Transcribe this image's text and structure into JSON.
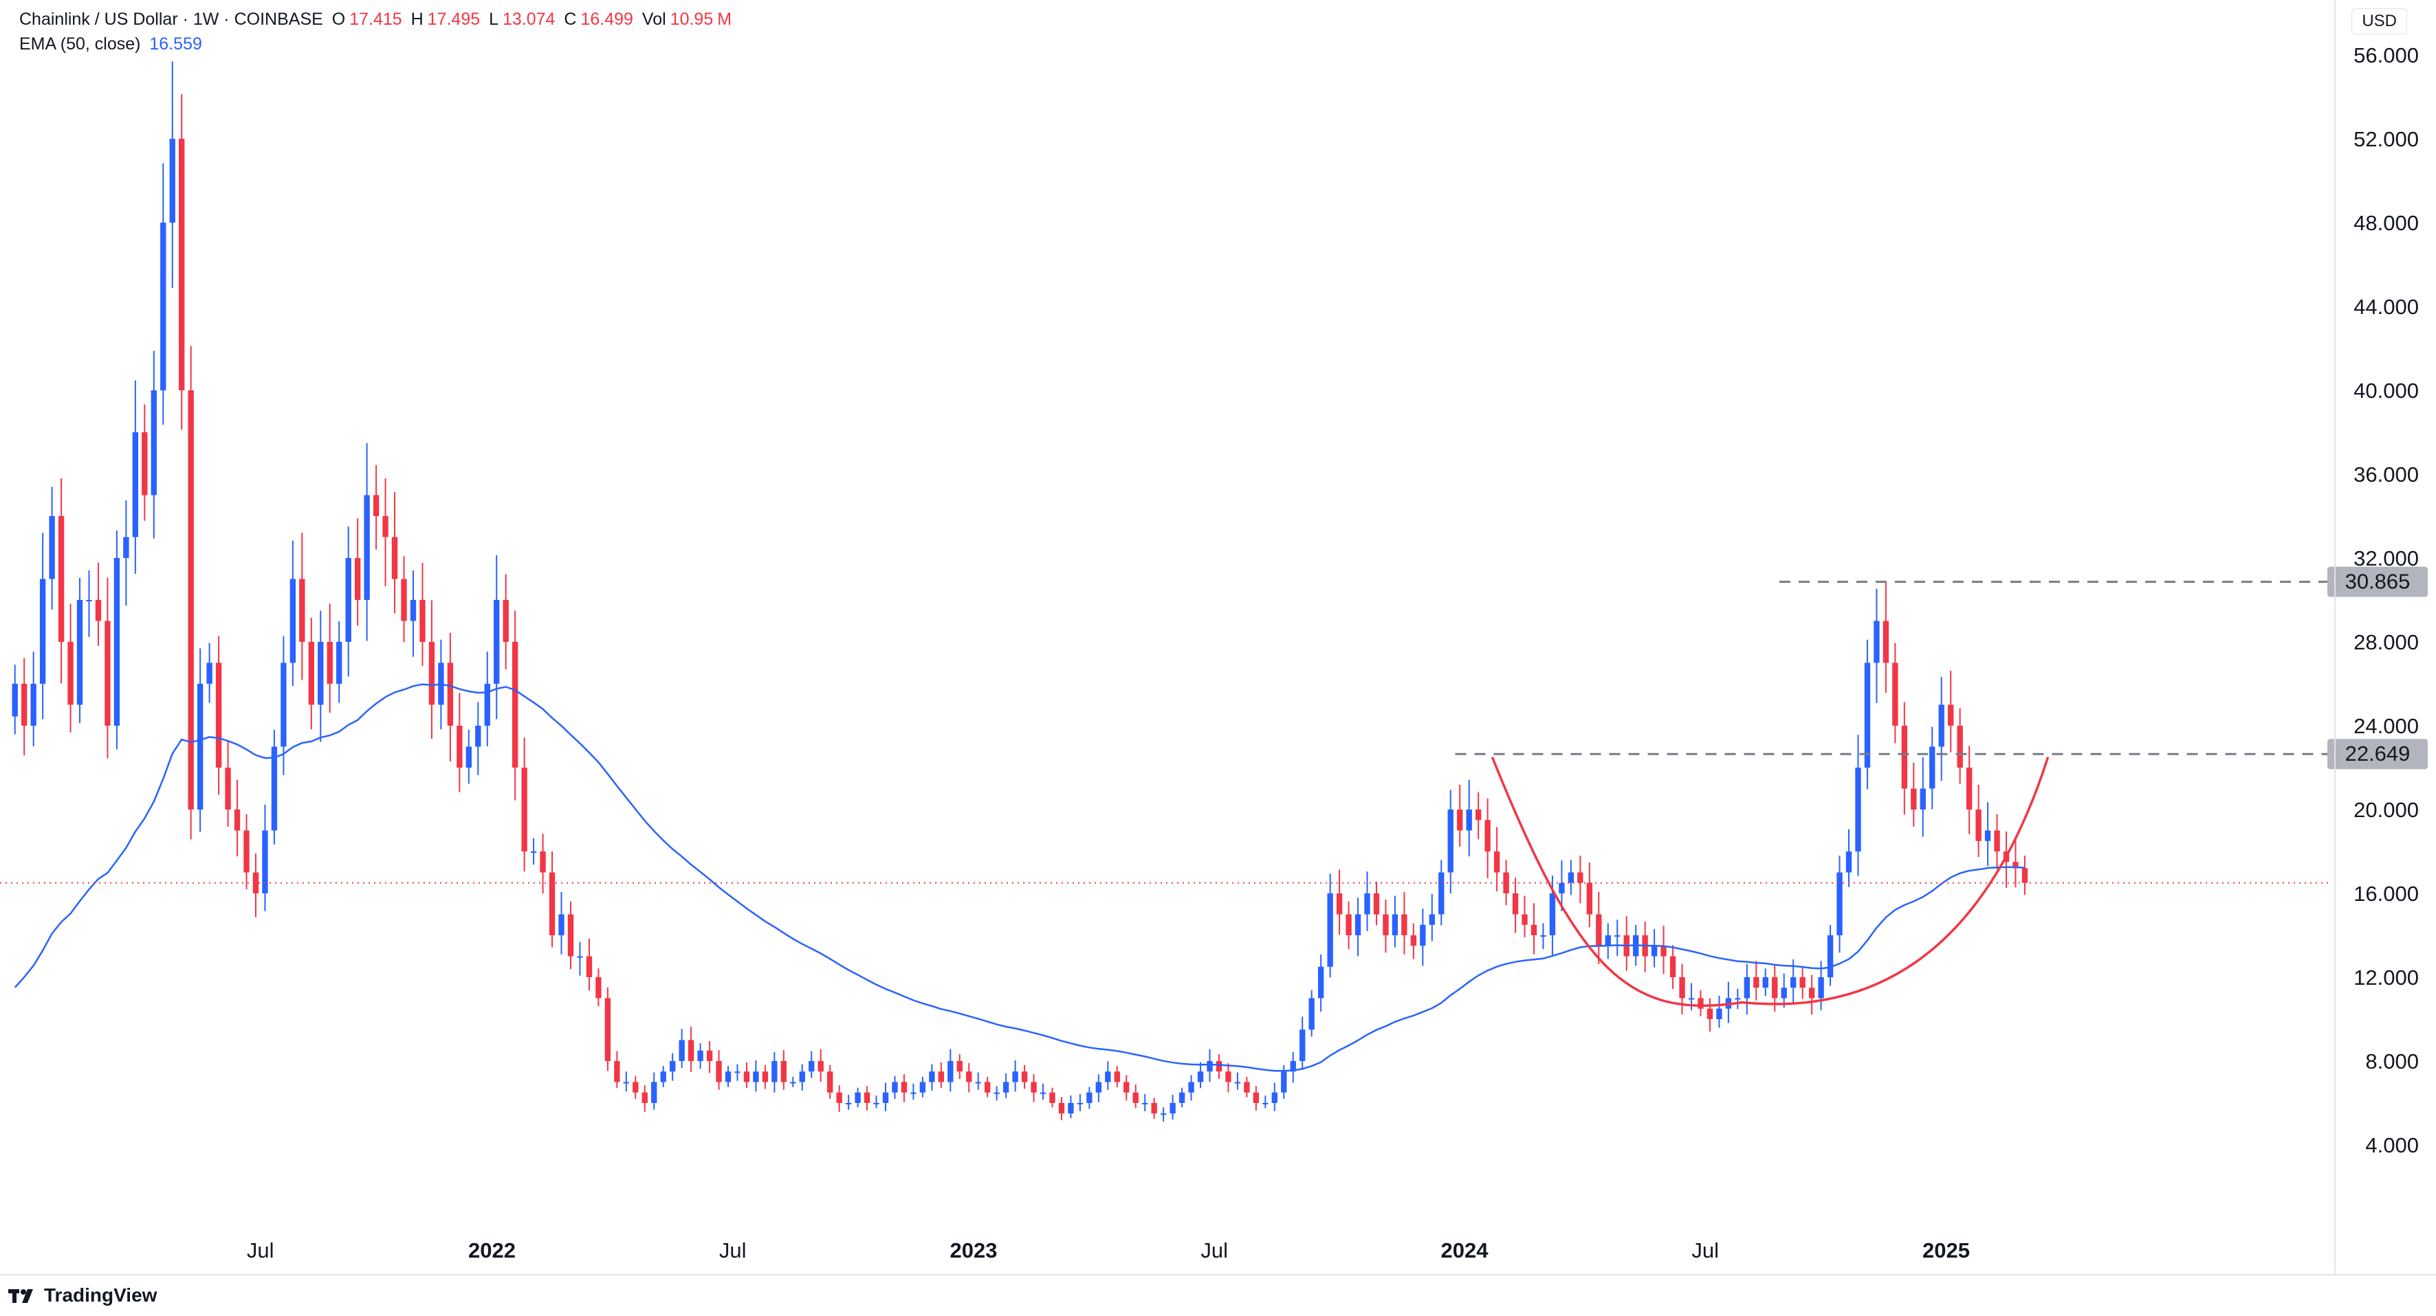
{
  "legend": {
    "symbol": "Chainlink / US Dollar · 1W · COINBASE",
    "o_label": "O",
    "o_value": "17.415",
    "h_label": "H",
    "h_value": "17.495",
    "l_label": "L",
    "l_value": "13.074",
    "c_label": "C",
    "c_value": "16.499",
    "vol_label": "Vol",
    "vol_value": "10.95",
    "vol_unit": "M",
    "ema_label": "EMA (50, close)",
    "ema_value": "16.559"
  },
  "currency": "USD",
  "brand": "TradingView",
  "colors": {
    "up": "#2962ff",
    "down": "#f23645",
    "ema": "#2962ff",
    "cup": "#f23645",
    "level": "#787b86"
  },
  "chart_data": {
    "type": "candlestick",
    "title": "Chainlink / US Dollar · 1W · COINBASE",
    "ylim": [
      0,
      58
    ],
    "y_ticks": [
      "56.000",
      "52.000",
      "48.000",
      "44.000",
      "40.000",
      "36.000",
      "32.000",
      "28.000",
      "24.000",
      "20.000",
      "16.000",
      "12.000",
      "8.000",
      "4.000"
    ],
    "y_tick_values": [
      56,
      52,
      48,
      44,
      40,
      36,
      32,
      28,
      24,
      20,
      16,
      12,
      8,
      4
    ],
    "x_labels": [
      {
        "label": "Jul",
        "week": 27,
        "bold": false
      },
      {
        "label": "2022",
        "week": 52,
        "bold": true
      },
      {
        "label": "Jul",
        "week": 78,
        "bold": false
      },
      {
        "label": "2023",
        "week": 104,
        "bold": true
      },
      {
        "label": "Jul",
        "week": 130,
        "bold": false
      },
      {
        "label": "2024",
        "week": 157,
        "bold": true
      },
      {
        "label": "Jul",
        "week": 183,
        "bold": false
      },
      {
        "label": "2025",
        "week": 209,
        "bold": true
      }
    ],
    "week_range": [
      0,
      242
    ],
    "closes": [
      26,
      24,
      26,
      31,
      34,
      28,
      25,
      30,
      30,
      29,
      24,
      32,
      33,
      38,
      35,
      40,
      48,
      52,
      40,
      20,
      26,
      27,
      22,
      20,
      19,
      17,
      16,
      19,
      23,
      27,
      31,
      28,
      25,
      28,
      26,
      28,
      32,
      30,
      35,
      34,
      33,
      31,
      29,
      30,
      28,
      25,
      27,
      24,
      22,
      23,
      24,
      26,
      30,
      28,
      22,
      18,
      18,
      17,
      14,
      15,
      13,
      13,
      12,
      11,
      8,
      7,
      7,
      6.5,
      6,
      7,
      7.5,
      8,
      9,
      8,
      8.5,
      8,
      7,
      7.5,
      7.5,
      7,
      7.5,
      7,
      8,
      7,
      7,
      7.5,
      8,
      7.5,
      6.5,
      6,
      6,
      6.5,
      6,
      6,
      6.5,
      7,
      6.5,
      6.5,
      7,
      7.5,
      7,
      8,
      7.5,
      7,
      7,
      6.5,
      6.5,
      7,
      7.5,
      7,
      6.5,
      6.5,
      6,
      5.5,
      6,
      6,
      6.5,
      7,
      7.5,
      7,
      6.5,
      6,
      6,
      5.5,
      5.5,
      6,
      6.5,
      7,
      7.5,
      8,
      7.5,
      7,
      7,
      6.5,
      6,
      6,
      6.5,
      7.5,
      8,
      9.5,
      11,
      12.5,
      16,
      15,
      14,
      15,
      16,
      15,
      14,
      15,
      14,
      13.5,
      14.5,
      15,
      17,
      20,
      19,
      20,
      19.5,
      18,
      17,
      16,
      15,
      14.5,
      14,
      14,
      16,
      16.5,
      17,
      16.5,
      15,
      13.5,
      14,
      14,
      13,
      14,
      13,
      13.5,
      13,
      12,
      11,
      11,
      10.5,
      10,
      10.5,
      11,
      11,
      12,
      11.5,
      12,
      11,
      11.5,
      12,
      11.5,
      11,
      12,
      14,
      17,
      18,
      22,
      27,
      29,
      27,
      24,
      21,
      20,
      21,
      23,
      25,
      24,
      22,
      20,
      18.5,
      19,
      18,
      17.5,
      17.2,
      16.5
    ],
    "ema_period": 50,
    "ema_last": 16.559,
    "last_close": 16.499,
    "levels": [
      {
        "label": "30.865",
        "value": 30.865,
        "from_week": 191
      },
      {
        "label": "22.649",
        "value": 22.649,
        "from_week": 156
      }
    ],
    "cup_curve": {
      "start_week": 160,
      "start_value": 22.5,
      "bottom_week": 187,
      "bottom_value": 10.8,
      "end_week": 220,
      "end_value": 22.5
    },
    "grid": false,
    "legend_position": "top-left"
  }
}
